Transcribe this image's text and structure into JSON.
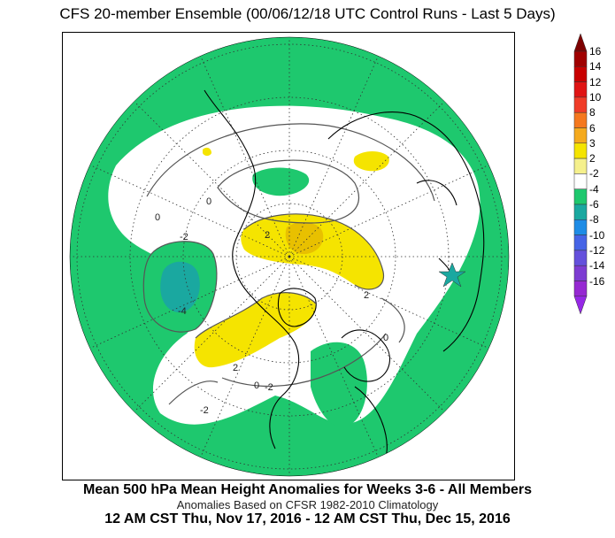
{
  "header": {
    "title": "CFS 20-member Ensemble (00/06/12/18 UTC Control Runs - Last 5 Days)"
  },
  "footer": {
    "main_caption": "Mean 500 hPa Mean Height Anomalies for Weeks 3-6 - All Members",
    "sub_caption": "Anomalies Based on CFSR 1982-2010 Climatology",
    "date_range": "12 AM CST Thu, Nov 17, 2016 - 12 AM CST Thu, Dec 15, 2016"
  },
  "map": {
    "contour_labels": [
      "0",
      "0",
      "-2",
      "-4",
      "2",
      "2",
      "2",
      "0",
      "-2",
      "-2",
      "0"
    ],
    "colors": {
      "negative_small": "#1ec86e",
      "negative_medium": "#1aa8a0",
      "neutral": "#ffffff",
      "positive_small": "#f5e400",
      "positive_medium": "#e8c000",
      "ocean_outline": "#000000"
    }
  },
  "legend": {
    "labels": [
      "16",
      "14",
      "12",
      "10",
      "8",
      "6",
      "3",
      "2",
      "-2",
      "-4",
      "-6",
      "-8",
      "-10",
      "-12",
      "-14",
      "-16"
    ],
    "colors": [
      "#a00000",
      "#c80000",
      "#e01414",
      "#f03c28",
      "#f5781e",
      "#f5aa1e",
      "#f5e400",
      "#f5f08c",
      "#ffffff",
      "#1ec86e",
      "#1aa8a0",
      "#1e8ce6",
      "#4664e6",
      "#6450dc",
      "#7d3cd2",
      "#9628d2"
    ],
    "top_arrow_color": "#7d0000",
    "bottom_arrow_color": "#9628e6"
  }
}
